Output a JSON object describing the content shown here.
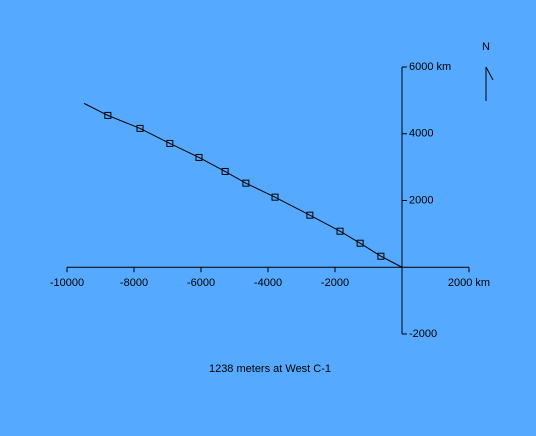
{
  "chart_data": {
    "type": "line",
    "caption": "1238 meters at West C-1",
    "north_label": "N",
    "xlim": [
      -10000,
      2000
    ],
    "ylim": [
      -2000,
      6000
    ],
    "xticks": [
      -10000,
      -8000,
      -6000,
      -4000,
      -2000,
      {
        "value": 2000,
        "label": "2000 km"
      }
    ],
    "yticks": [
      -2000,
      2000,
      4000,
      {
        "value": 6000,
        "label": "6000 km"
      }
    ],
    "series": [
      {
        "kind": "line",
        "color": "#000000",
        "x": [
          -9490,
          -8780,
          -7820,
          -6930,
          -6060,
          -5280,
          -4660,
          -3790,
          -2750,
          -1850,
          -1250,
          -630,
          0
        ],
        "y": [
          4910,
          4550,
          4160,
          3710,
          3290,
          2870,
          2520,
          2100,
          1560,
          1080,
          720,
          330,
          0
        ]
      },
      {
        "kind": "markers",
        "color": "#000000",
        "x": [
          -8780,
          -7820,
          -6930,
          -6060,
          -5280,
          -4660,
          -3790,
          -2750,
          -1850,
          -1250,
          -630
        ],
        "y": [
          4550,
          4160,
          3710,
          3290,
          2870,
          2520,
          2100,
          1560,
          1080,
          720,
          330
        ]
      }
    ]
  }
}
